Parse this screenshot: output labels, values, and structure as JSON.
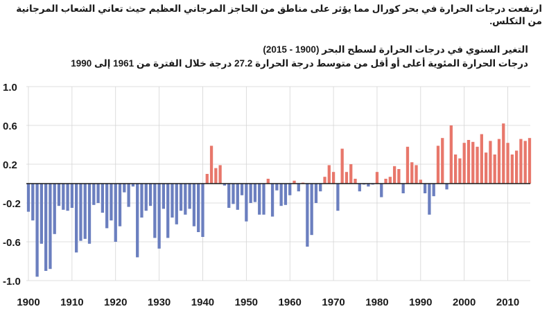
{
  "headline": "ارتفعت درجات الحرارة في بحر كورال مما يؤثر على مناطق من الحاجز المرجاني العظيم حيث تعاني الشعاب المرجانية من التكلس.",
  "chart_data": {
    "type": "bar",
    "title": "التغير السنوي في درجات الحرارة لسطح البحر (1900 - 2015)",
    "subtitle": "درجات الحرارة المئوية أعلى أو أقل من متوسط درجة الحرارة 27.2 درجة خلال الفترة من 1961 إلى 1990",
    "xlabel": "",
    "ylabel": "",
    "ylim": [
      -1.0,
      1.0
    ],
    "xlim": [
      1900,
      2015
    ],
    "grid": true,
    "colors": {
      "positive": "#e8776b",
      "negative": "#6b7fbf"
    },
    "y_ticks": [
      "1.0",
      "0.6",
      "0.2",
      "-0.2",
      "-0.6",
      "-1.0"
    ],
    "y_tick_values": [
      1.0,
      0.6,
      0.2,
      -0.2,
      -0.6,
      -1.0
    ],
    "x_ticks": [
      "1900",
      "1910",
      "1920",
      "1930",
      "1940",
      "1950",
      "1960",
      "1970",
      "1980",
      "1990",
      "2000",
      "2010"
    ],
    "x_tick_values": [
      1900,
      1910,
      1920,
      1930,
      1940,
      1950,
      1960,
      1970,
      1980,
      1990,
      2000,
      2010
    ],
    "years": [
      1900,
      1901,
      1902,
      1903,
      1904,
      1905,
      1906,
      1907,
      1908,
      1909,
      1910,
      1911,
      1912,
      1913,
      1914,
      1915,
      1916,
      1917,
      1918,
      1919,
      1920,
      1921,
      1922,
      1923,
      1924,
      1925,
      1926,
      1927,
      1928,
      1929,
      1930,
      1931,
      1932,
      1933,
      1934,
      1935,
      1936,
      1937,
      1938,
      1939,
      1940,
      1941,
      1942,
      1943,
      1944,
      1945,
      1946,
      1947,
      1948,
      1949,
      1950,
      1951,
      1952,
      1953,
      1954,
      1955,
      1956,
      1957,
      1958,
      1959,
      1960,
      1961,
      1962,
      1963,
      1964,
      1965,
      1966,
      1967,
      1968,
      1969,
      1970,
      1971,
      1972,
      1973,
      1974,
      1975,
      1976,
      1977,
      1978,
      1979,
      1980,
      1981,
      1982,
      1983,
      1984,
      1985,
      1986,
      1987,
      1988,
      1989,
      1990,
      1991,
      1992,
      1993,
      1994,
      1995,
      1996,
      1997,
      1998,
      1999,
      2000,
      2001,
      2002,
      2003,
      2004,
      2005,
      2006,
      2007,
      2008,
      2009,
      2010,
      2011,
      2012,
      2013,
      2014,
      2015
    ],
    "values": [
      -0.29,
      -0.38,
      -0.96,
      -0.62,
      -0.9,
      -0.88,
      -0.52,
      -0.23,
      -0.27,
      -0.28,
      -0.25,
      -0.71,
      -0.59,
      -0.57,
      -0.62,
      -0.22,
      -0.2,
      -0.3,
      -0.46,
      -0.38,
      -0.6,
      -0.44,
      -0.09,
      -0.24,
      -0.03,
      -0.76,
      -0.35,
      -0.28,
      -0.23,
      -0.56,
      -0.67,
      -0.26,
      -0.56,
      -0.35,
      -0.42,
      -0.28,
      -0.32,
      -0.26,
      -0.44,
      -0.5,
      -0.55,
      0.1,
      0.39,
      0.16,
      0.19,
      -0.02,
      -0.25,
      -0.21,
      -0.27,
      -0.12,
      -0.39,
      -0.2,
      -0.19,
      -0.32,
      -0.32,
      0.05,
      -0.34,
      -0.07,
      -0.23,
      -0.22,
      -0.12,
      0.03,
      -0.08,
      0.01,
      -0.65,
      -0.53,
      -0.2,
      -0.08,
      0.07,
      0.19,
      0.12,
      -0.28,
      0.36,
      0.12,
      0.2,
      0.05,
      -0.08,
      -0.01,
      -0.03,
      -0.01,
      0.12,
      -0.14,
      0.05,
      0.07,
      0.18,
      0.15,
      -0.1,
      0.38,
      0.22,
      0.19,
      0.04,
      -0.1,
      -0.32,
      -0.13,
      0.39,
      0.47,
      -0.06,
      0.6,
      0.3,
      0.26,
      0.42,
      0.45,
      0.43,
      0.38,
      0.51,
      0.32,
      0.44,
      0.3,
      0.46,
      0.62,
      0.42,
      0.3,
      0.34,
      0.46,
      0.44,
      0.47
    ]
  }
}
